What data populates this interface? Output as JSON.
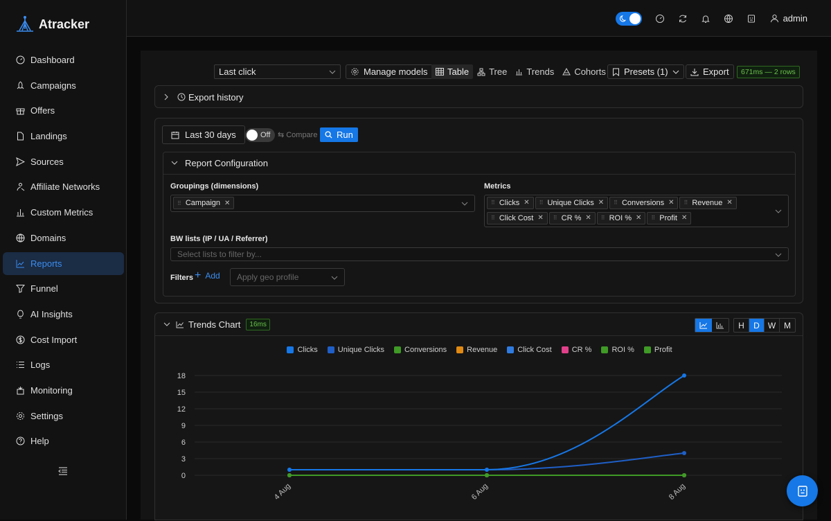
{
  "app": {
    "name": "Atracker",
    "user": "admin"
  },
  "sidebar": {
    "items": [
      {
        "label": "Dashboard",
        "icon": "dashboard-icon"
      },
      {
        "label": "Campaigns",
        "icon": "rocket-icon"
      },
      {
        "label": "Offers",
        "icon": "gift-icon"
      },
      {
        "label": "Landings",
        "icon": "file-icon"
      },
      {
        "label": "Sources",
        "icon": "send-icon"
      },
      {
        "label": "Affiliate Networks",
        "icon": "network-icon"
      },
      {
        "label": "Custom Metrics",
        "icon": "bar-chart-icon"
      },
      {
        "label": "Domains",
        "icon": "globe-icon"
      },
      {
        "label": "Reports",
        "icon": "line-chart-icon",
        "active": true
      },
      {
        "label": "Funnel",
        "icon": "funnel-icon"
      },
      {
        "label": "AI Insights",
        "icon": "bulb-icon"
      },
      {
        "label": "Cost Import",
        "icon": "dollar-icon"
      },
      {
        "label": "Logs",
        "icon": "list-icon"
      },
      {
        "label": "Monitoring",
        "icon": "monitor-icon"
      },
      {
        "label": "Settings",
        "icon": "gear-icon"
      },
      {
        "label": "Help",
        "icon": "help-icon"
      }
    ]
  },
  "toolbar": {
    "attribution": "Last click",
    "manage_models": "Manage models",
    "views": [
      "Table",
      "Tree",
      "Trends",
      "Cohorts"
    ],
    "active_view": "Table",
    "presets": "Presets (1)",
    "export": "Export",
    "timing": "671ms — 2 rows"
  },
  "export_history": {
    "label": "Export history"
  },
  "query": {
    "date_range": "Last 30 days",
    "compare_toggle": "Off",
    "compare_label": "Compare",
    "run": "Run"
  },
  "report_config": {
    "title": "Report Configuration",
    "groupings_label": "Groupings (dimensions)",
    "groupings": [
      "Campaign"
    ],
    "metrics_label": "Metrics",
    "metrics": [
      "Clicks",
      "Unique Clicks",
      "Conversions",
      "Revenue",
      "Click Cost",
      "CR %",
      "ROI %",
      "Profit"
    ],
    "bw_label": "BW lists (IP / UA / Referrer)",
    "bw_placeholder": "Select lists to filter by...",
    "filters_label": "Filters",
    "add_label": "Add",
    "geo_placeholder": "Apply geo profile"
  },
  "trends_chart": {
    "title": "Trends Chart",
    "timing": "16ms",
    "granularity": [
      "H",
      "D",
      "W",
      "M"
    ],
    "active_granularity": "D"
  },
  "chart_data": {
    "type": "line",
    "x": [
      "4 Aug",
      "6 Aug",
      "8 Aug"
    ],
    "ylim": [
      0,
      18
    ],
    "yticks": [
      0,
      3,
      6,
      9,
      12,
      15,
      18
    ],
    "series": [
      {
        "name": "Clicks",
        "color": "#1677e6",
        "values": [
          1,
          1,
          18
        ]
      },
      {
        "name": "Unique Clicks",
        "color": "#1f5fc7",
        "values": [
          1,
          1,
          4
        ]
      },
      {
        "name": "Conversions",
        "color": "#3f9a26",
        "values": [
          0,
          0,
          0
        ]
      },
      {
        "name": "Revenue",
        "color": "#e08a14",
        "values": [
          0,
          0,
          0
        ]
      },
      {
        "name": "Click Cost",
        "color": "#2f7be0",
        "values": [
          0,
          0,
          0
        ]
      },
      {
        "name": "CR %",
        "color": "#e0408a",
        "values": [
          0,
          0,
          0
        ]
      },
      {
        "name": "ROI %",
        "color": "#3f9a26",
        "values": [
          0,
          0,
          0
        ]
      },
      {
        "name": "Profit",
        "color": "#3f9a26",
        "values": [
          0,
          0,
          0
        ]
      }
    ]
  }
}
